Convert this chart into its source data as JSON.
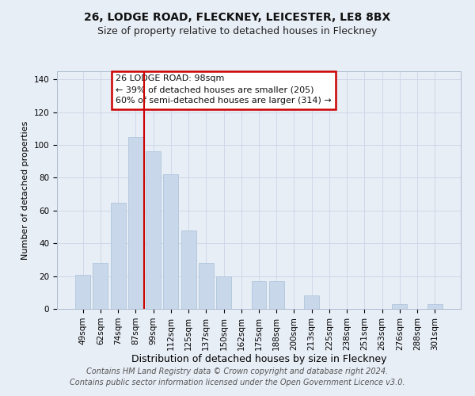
{
  "title": "26, LODGE ROAD, FLECKNEY, LEICESTER, LE8 8BX",
  "subtitle": "Size of property relative to detached houses in Fleckney",
  "xlabel": "Distribution of detached houses by size in Fleckney",
  "ylabel": "Number of detached properties",
  "categories": [
    "49sqm",
    "62sqm",
    "74sqm",
    "87sqm",
    "99sqm",
    "112sqm",
    "125sqm",
    "137sqm",
    "150sqm",
    "162sqm",
    "175sqm",
    "188sqm",
    "200sqm",
    "213sqm",
    "225sqm",
    "238sqm",
    "251sqm",
    "263sqm",
    "276sqm",
    "288sqm",
    "301sqm"
  ],
  "values": [
    21,
    28,
    65,
    105,
    96,
    82,
    48,
    28,
    20,
    0,
    17,
    17,
    0,
    8,
    0,
    0,
    0,
    0,
    3,
    0,
    3
  ],
  "bar_color": "#c8d8ea",
  "bar_edge_color": "#a8c0d8",
  "red_line_index": 4,
  "annotation_lines": [
    "26 LODGE ROAD: 98sqm",
    "← 39% of detached houses are smaller (205)",
    "60% of semi-detached houses are larger (314) →"
  ],
  "ylim": [
    0,
    145
  ],
  "yticks": [
    0,
    20,
    40,
    60,
    80,
    100,
    120,
    140
  ],
  "grid_color": "#d0d8e8",
  "bg_color": "#e8eef6",
  "plot_bg_color": "#e8eef6",
  "title_fontsize": 10,
  "subtitle_fontsize": 9,
  "ylabel_fontsize": 8,
  "xlabel_fontsize": 9,
  "tick_fontsize": 7.5,
  "footer_text": "Contains HM Land Registry data © Crown copyright and database right 2024.\nContains public sector information licensed under the Open Government Licence v3.0.",
  "footer_fontsize": 7,
  "red_line_color": "#cc0000",
  "annotation_box_facecolor": "#ffffff",
  "annotation_box_edgecolor": "#cc0000",
  "annotation_fontsize": 8
}
